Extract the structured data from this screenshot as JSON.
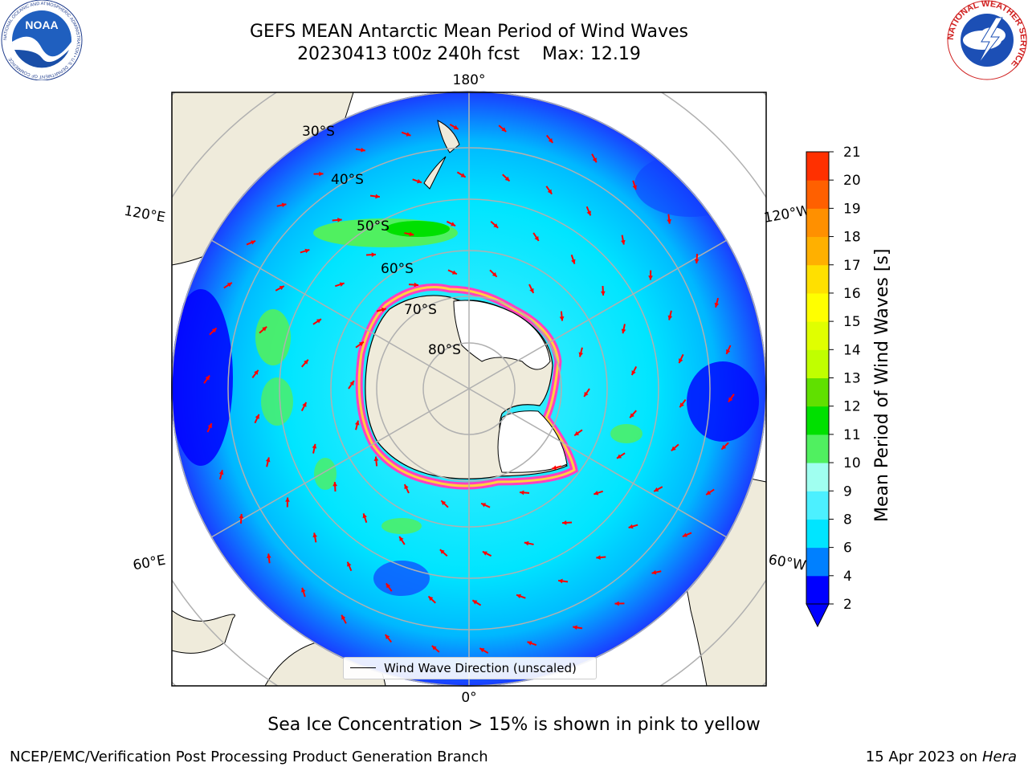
{
  "header": {
    "title_line1": "GEFS MEAN Antarctic Mean Period of Wind Waves",
    "title_line2_run": "20230413 t00z 240h fcst",
    "title_line2_max": "Max: 12.19"
  },
  "logos": {
    "noaa": "NOAA",
    "noaa_ring": "NATIONAL OCEANIC AND ATMOSPHERIC ADMINISTRATION • U.S. DEPARTMENT OF COMMERCE",
    "nws_ring": "NATIONAL WEATHER SERVICE"
  },
  "map": {
    "longitude_labels": {
      "top": "180°",
      "bottom": "0°",
      "upper_left": "120°E",
      "upper_right": "120°W",
      "lower_left": "60°E",
      "lower_right": "60°W"
    },
    "latitude_labels": [
      "30°S",
      "40°S",
      "50°S",
      "60°S",
      "70°S",
      "80°S"
    ],
    "legend": {
      "label": "Wind Wave Direction (unscaled)"
    },
    "colors": {
      "land": "#efebdb",
      "ocean_2_4": "#0000ff",
      "ocean_4_6": "#00e5ff",
      "ocean_6_8": "#4cf0ff",
      "ocean_8_10": "#96ffd2",
      "green_10_11": "#50f060",
      "green_11_12": "#00e000",
      "arrow": "#ff0000",
      "sea_ice": "#ff40c0"
    }
  },
  "colorbar": {
    "label": "Mean Period of Wind Waves [s]",
    "ticks": [
      "2",
      "4",
      "6",
      "8",
      "9",
      "10",
      "11",
      "12",
      "13",
      "14",
      "15",
      "16",
      "17",
      "18",
      "19",
      "20",
      "21"
    ],
    "colors": [
      "#0000ff",
      "#0080ff",
      "#00e5ff",
      "#4cf0ff",
      "#a0fff0",
      "#50f060",
      "#00e000",
      "#60e000",
      "#c0ff00",
      "#e0ff00",
      "#ffff00",
      "#ffe000",
      "#ffb000",
      "#ff9000",
      "#ff6000",
      "#ff3000",
      "#ff0000"
    ],
    "extend": "min"
  },
  "footer": {
    "ice_note": "Sea Ice Concentration > 15% is shown in pink to yellow",
    "producer": "NCEP/EMC/Verification Post Processing Product Generation Branch",
    "date": "15 Apr 2023 on",
    "host": "Hera"
  }
}
